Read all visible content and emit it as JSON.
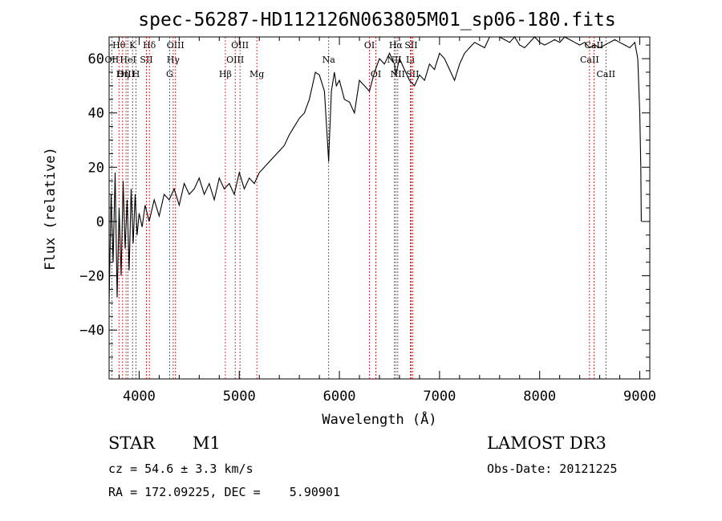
{
  "chart_data": {
    "type": "line",
    "title": "spec-56287-HD112126N063805M01_sp06-180.fits",
    "xlabel": "Wavelength (Å)",
    "ylabel": "Flux (relative)",
    "xlim": [
      3700,
      9100
    ],
    "ylim": [
      -58,
      68
    ],
    "x_ticks": [
      4000,
      5000,
      6000,
      7000,
      8000,
      9000
    ],
    "x_tick_labels": [
      "4000",
      "5000",
      "6000",
      "7000",
      "8000",
      "9000"
    ],
    "y_ticks": [
      -40,
      -20,
      0,
      20,
      40,
      60
    ],
    "y_tick_labels": [
      "−40",
      "−20",
      "0",
      "20",
      "40",
      "60"
    ],
    "series": [
      {
        "name": "spectrum",
        "x": [
          3700,
          3720,
          3740,
          3760,
          3780,
          3800,
          3820,
          3840,
          3860,
          3880,
          3900,
          3920,
          3940,
          3960,
          3980,
          4000,
          4030,
          4060,
          4100,
          4150,
          4200,
          4250,
          4300,
          4350,
          4400,
          4450,
          4500,
          4550,
          4600,
          4650,
          4700,
          4750,
          4800,
          4850,
          4900,
          4950,
          5000,
          5050,
          5100,
          5150,
          5200,
          5250,
          5300,
          5350,
          5400,
          5450,
          5500,
          5550,
          5600,
          5650,
          5700,
          5730,
          5760,
          5800,
          5850,
          5880,
          5893,
          5900,
          5920,
          5950,
          5970,
          6000,
          6050,
          6100,
          6150,
          6200,
          6250,
          6300,
          6350,
          6400,
          6450,
          6500,
          6550,
          6563,
          6600,
          6650,
          6700,
          6750,
          6800,
          6850,
          6900,
          6950,
          7000,
          7050,
          7100,
          7150,
          7200,
          7250,
          7300,
          7350,
          7400,
          7450,
          7500,
          7550,
          7600,
          7650,
          7700,
          7750,
          7800,
          7850,
          7900,
          7950,
          8000,
          8050,
          8100,
          8150,
          8200,
          8250,
          8300,
          8350,
          8400,
          8450,
          8500,
          8550,
          8600,
          8650,
          8700,
          8750,
          8800,
          8850,
          8900,
          8950,
          8980,
          9000,
          9010,
          9015
        ],
        "y": [
          -30,
          10,
          -15,
          18,
          -28,
          5,
          -20,
          15,
          -10,
          8,
          -18,
          12,
          -8,
          10,
          -5,
          3,
          -2,
          6,
          0,
          8,
          2,
          10,
          8,
          12,
          6,
          14,
          10,
          12,
          16,
          10,
          14,
          8,
          16,
          12,
          14,
          10,
          18,
          12,
          16,
          14,
          18,
          20,
          22,
          24,
          26,
          28,
          32,
          35,
          38,
          40,
          45,
          50,
          55,
          54,
          48,
          30,
          22,
          30,
          48,
          55,
          50,
          52,
          45,
          44,
          40,
          52,
          50,
          48,
          55,
          60,
          58,
          62,
          58,
          54,
          60,
          56,
          52,
          50,
          54,
          52,
          58,
          56,
          62,
          60,
          56,
          52,
          58,
          62,
          64,
          66,
          65,
          64,
          68,
          70,
          68,
          67,
          66,
          68,
          65,
          64,
          66,
          68,
          66,
          65,
          66,
          67,
          66,
          68,
          67,
          66,
          65,
          66,
          64,
          65,
          64,
          65,
          66,
          67,
          66,
          65,
          64,
          66,
          60,
          40,
          20,
          0
        ]
      }
    ],
    "line_markers": [
      {
        "label": "Hθ",
        "x": 3798,
        "row": 1
      },
      {
        "label": "OII",
        "x": 3727,
        "row": 2
      },
      {
        "label": "OIII",
        "x": 3869,
        "row": 3
      },
      {
        "label": "K",
        "x": 3934,
        "row": 1
      },
      {
        "label": "HeI",
        "x": 3889,
        "row": 2
      },
      {
        "label": "Hη",
        "x": 3835,
        "row": 3
      },
      {
        "label": "Hδ",
        "x": 4102,
        "row": 1
      },
      {
        "label": "SII",
        "x": 4072,
        "row": 2
      },
      {
        "label": "H",
        "x": 3969,
        "row": 3
      },
      {
        "label": "OIII",
        "x": 4363,
        "row": 1
      },
      {
        "label": "Hγ",
        "x": 4340,
        "row": 2
      },
      {
        "label": "G",
        "x": 4304,
        "row": 3
      },
      {
        "label": "OIII",
        "x": 5007,
        "row": 1
      },
      {
        "label": "OIII",
        "x": 4959,
        "row": 2
      },
      {
        "label": "Hβ",
        "x": 4861,
        "row": 3
      },
      {
        "label": "Mg",
        "x": 5175,
        "row": 3
      },
      {
        "label": "Na",
        "x": 5893,
        "row": 2
      },
      {
        "label": "OI",
        "x": 6300,
        "row": 1
      },
      {
        "label": "OI",
        "x": 6364,
        "row": 3
      },
      {
        "label": "Hα",
        "x": 6563,
        "row": 1
      },
      {
        "label": "NII",
        "x": 6548,
        "row": 2
      },
      {
        "label": "NII",
        "x": 6583,
        "row": 3
      },
      {
        "label": "SII",
        "x": 6716,
        "row": 1
      },
      {
        "label": "Li",
        "x": 6708,
        "row": 2
      },
      {
        "label": "SII",
        "x": 6731,
        "row": 3
      },
      {
        "label": "CaII",
        "x": 8542,
        "row": 1
      },
      {
        "label": "CaII",
        "x": 8498,
        "row": 2
      },
      {
        "label": "CaII",
        "x": 8662,
        "row": 3
      }
    ],
    "grid": false,
    "legend": "none",
    "colors": {
      "spectrum": "#000000",
      "markers": "#cc0000"
    }
  },
  "info": {
    "object_type": "STAR",
    "subclass": "M1",
    "survey": "LAMOST DR3",
    "cz": "cz = 54.6 ± 3.3 km/s",
    "obs_date": "Obs-Date: 20121225",
    "coords": "RA = 172.09225, DEC =    5.90901"
  }
}
